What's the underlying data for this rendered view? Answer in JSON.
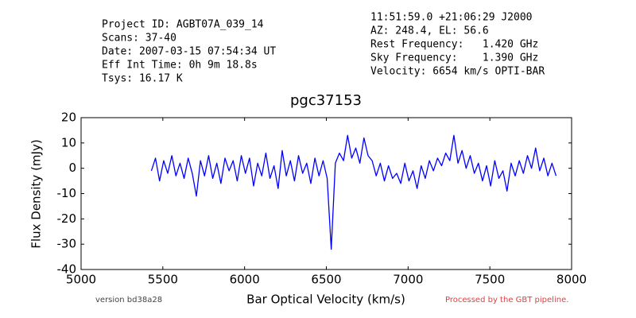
{
  "chart_data": {
    "type": "line",
    "title": "pgc37153",
    "info_left": [
      "Project ID: AGBT07A_039_14",
      "Scans: 37-40",
      "Date: 2007-03-15 07:54:34 UT",
      "Eff Int Time: 0h 9m 18.8s",
      "Tsys: 16.17 K"
    ],
    "info_right": [
      "11:51:59.0 +21:06:29 J2000",
      "AZ: 248.4, EL: 56.6",
      "Rest Frequency:   1.420 GHz",
      "Sky Frequency:    1.390 GHz",
      "Velocity: 6654 km/s OPTI-BAR"
    ],
    "footer_left": "version bd38a28",
    "footer_right": "Processed by the GBT pipeline.",
    "xlabel": "Bar Optical Velocity (km/s)",
    "ylabel": "Flux Density (mJy)",
    "color": "#0000ff",
    "xlim": [
      5000,
      8000
    ],
    "xticks": [
      5000,
      5500,
      6000,
      6500,
      7000,
      7500,
      8000
    ],
    "ylim": [
      -40,
      20
    ],
    "yticks": [
      -40,
      -30,
      -20,
      -10,
      0,
      10,
      20
    ],
    "grid": false,
    "x": [
      5430,
      5455,
      5480,
      5505,
      5530,
      5555,
      5580,
      5605,
      5630,
      5655,
      5680,
      5705,
      5730,
      5755,
      5780,
      5805,
      5830,
      5855,
      5880,
      5905,
      5930,
      5955,
      5980,
      6005,
      6030,
      6055,
      6080,
      6105,
      6130,
      6155,
      6180,
      6205,
      6230,
      6255,
      6280,
      6305,
      6330,
      6355,
      6380,
      6405,
      6430,
      6455,
      6480,
      6505,
      6530,
      6555,
      6580,
      6605,
      6630,
      6655,
      6680,
      6705,
      6730,
      6755,
      6780,
      6805,
      6830,
      6855,
      6880,
      6905,
      6930,
      6955,
      6980,
      7005,
      7030,
      7055,
      7080,
      7105,
      7130,
      7155,
      7180,
      7205,
      7230,
      7255,
      7280,
      7305,
      7330,
      7355,
      7380,
      7405,
      7430,
      7455,
      7480,
      7505,
      7530,
      7555,
      7580,
      7605,
      7630,
      7655,
      7680,
      7705,
      7730,
      7755,
      7780,
      7805,
      7830,
      7855,
      7880,
      7905
    ],
    "values": [
      -1,
      4,
      -5,
      3,
      -2,
      5,
      -3,
      2,
      -4,
      4,
      -2,
      -11,
      3,
      -3,
      5,
      -4,
      2,
      -6,
      4,
      -1,
      3,
      -5,
      5,
      -2,
      4,
      -7,
      2,
      -3,
      6,
      -4,
      1,
      -8,
      7,
      -3,
      3,
      -5,
      5,
      -2,
      2,
      -6,
      4,
      -3,
      3,
      -4,
      -32,
      2,
      6,
      3,
      13,
      4,
      8,
      2,
      12,
      5,
      3,
      -3,
      2,
      -5,
      1,
      -4,
      -2,
      -6,
      2,
      -5,
      -1,
      -8,
      1,
      -4,
      3,
      -1,
      4,
      1,
      6,
      3,
      13,
      2,
      7,
      0,
      5,
      -2,
      2,
      -5,
      1,
      -7,
      3,
      -4,
      -1,
      -9,
      2,
      -3,
      3,
      -2,
      5,
      0,
      8,
      -1,
      4,
      -3,
      2,
      -3
    ]
  }
}
